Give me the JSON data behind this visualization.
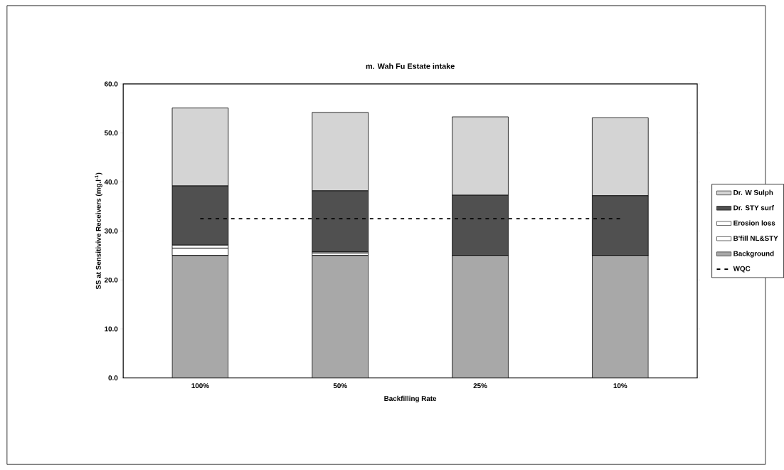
{
  "chart_data": {
    "type": "bar",
    "title": "m.  Wah Fu Estate intake",
    "xlabel": "Backfilling Rate",
    "ylabel": "SS at Sensitivive Receivers (mg.l$^{-1}$)",
    "categories": [
      "100%",
      "50%",
      "25%",
      "10%"
    ],
    "stacked": true,
    "ylim": [
      0,
      60
    ],
    "yticks": [
      {
        "value": 0,
        "label": "0.0"
      },
      {
        "value": 10,
        "label": "10.0"
      },
      {
        "value": 20,
        "label": "20.0"
      },
      {
        "value": 30,
        "label": "30.0"
      },
      {
        "value": 40,
        "label": "40.0"
      },
      {
        "value": 50,
        "label": "50.0"
      },
      {
        "value": 60,
        "label": "60.0"
      }
    ],
    "legend": "right",
    "series": [
      {
        "name": "Background",
        "color": "#a8a8a8",
        "values": [
          25.0,
          25.0,
          25.0,
          25.0
        ]
      },
      {
        "name": "B'fill NL&STY",
        "color": "#ffffff",
        "values": [
          1.5,
          0.5,
          null,
          null
        ]
      },
      {
        "name": "Erosion loss",
        "color": "#ffffff",
        "values": [
          0.6,
          0.2,
          0.0,
          0.0
        ]
      },
      {
        "name": "Dr. STY surf",
        "color": "#505050",
        "values": [
          12.1,
          12.5,
          12.3,
          12.2
        ]
      },
      {
        "name": "Dr. W Sulph",
        "color": "#d4d4d4",
        "values": [
          15.9,
          16.0,
          16.0,
          15.9
        ]
      },
      {
        "name": "WQC",
        "type": "line",
        "color": "#000000",
        "line_style": "dashed",
        "marker": "none",
        "values": [
          32.5,
          32.5,
          32.5,
          32.5
        ]
      }
    ]
  }
}
